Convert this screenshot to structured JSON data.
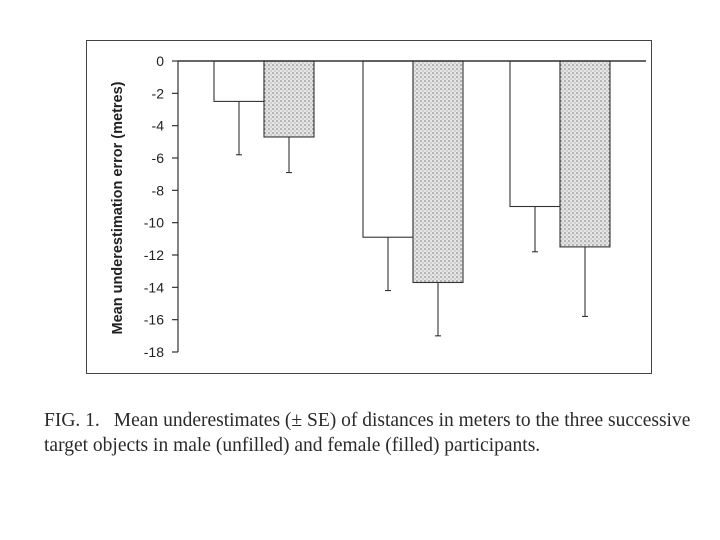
{
  "chart_data": {
    "type": "bar",
    "title": "",
    "xlabel": "",
    "ylabel": "Mean underestimation error (metres)",
    "ylim": [
      -18,
      0
    ],
    "yticks": [
      0,
      -2,
      -4,
      -6,
      -8,
      -10,
      -12,
      -14,
      -16,
      -18
    ],
    "grid": false,
    "categories": [
      "",
      "",
      ""
    ],
    "series": [
      {
        "values": [
          -2.5,
          -10.9,
          -9.0
        ],
        "errors": [
          3.3,
          3.3,
          2.8
        ],
        "color": "#ffffff"
      },
      {
        "values": [
          -4.7,
          -13.7,
          -11.5
        ],
        "errors": [
          2.2,
          3.3,
          4.3
        ],
        "color": "#c8c8c8"
      }
    ]
  },
  "caption": {
    "label": "FIG. 1.",
    "text": "Mean underestimates (± SE) of distances in meters to the three successive target objects in male (unfilled) and female (filled) participants."
  }
}
